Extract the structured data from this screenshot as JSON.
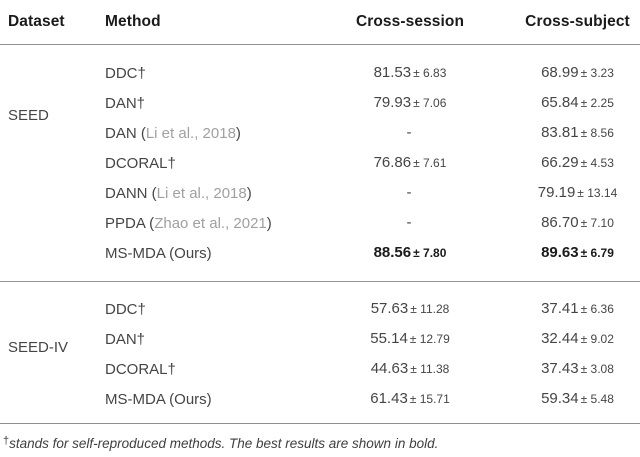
{
  "table": {
    "headers": {
      "dataset": "Dataset",
      "method": "Method",
      "cross_session": "Cross-session",
      "cross_subject": "Cross-subject"
    },
    "sections": [
      {
        "dataset": "SEED",
        "rows": [
          {
            "method_pre": "DDC†",
            "method_cite": "",
            "method_post": "",
            "session_main": "81.53",
            "session_sd": "± 6.83",
            "subject_main": "68.99",
            "subject_sd": "± 3.23"
          },
          {
            "method_pre": "DAN†",
            "method_cite": "",
            "method_post": "",
            "session_main": "79.93",
            "session_sd": "± 7.06",
            "subject_main": "65.84",
            "subject_sd": "± 2.25"
          },
          {
            "method_pre": "DAN (",
            "method_cite": "Li et al., 2018",
            "method_post": ")",
            "session_main": "-",
            "session_sd": "",
            "subject_main": "83.81",
            "subject_sd": "± 8.56"
          },
          {
            "method_pre": "DCORAL†",
            "method_cite": "",
            "method_post": "",
            "session_main": "76.86",
            "session_sd": "± 7.61",
            "subject_main": "66.29",
            "subject_sd": "± 4.53"
          },
          {
            "method_pre": "DANN (",
            "method_cite": "Li et al., 2018",
            "method_post": ")",
            "session_main": "-",
            "session_sd": "",
            "subject_main": "79.19",
            "subject_sd": "± 13.14"
          },
          {
            "method_pre": "PPDA (",
            "method_cite": "Zhao et al., 2021",
            "method_post": ")",
            "session_main": "-",
            "session_sd": "",
            "subject_main": "86.70",
            "subject_sd": "± 7.10"
          },
          {
            "method_pre": "MS-MDA (Ours)",
            "method_cite": "",
            "method_post": "",
            "session_main": "88.56",
            "session_sd": "± 7.80",
            "subject_main": "89.63",
            "subject_sd": "± 6.79"
          }
        ]
      },
      {
        "dataset": "SEED-IV",
        "rows": [
          {
            "method_pre": "DDC†",
            "method_cite": "",
            "method_post": "",
            "session_main": "57.63",
            "session_sd": "± 11.28",
            "subject_main": "37.41",
            "subject_sd": "± 6.36"
          },
          {
            "method_pre": "DAN†",
            "method_cite": "",
            "method_post": "",
            "session_main": "55.14",
            "session_sd": "± 12.79",
            "subject_main": "32.44",
            "subject_sd": "± 9.02"
          },
          {
            "method_pre": "DCORAL†",
            "method_cite": "",
            "method_post": "",
            "session_main": "44.63",
            "session_sd": "± 11.38",
            "subject_main": "37.43",
            "subject_sd": "± 3.08"
          },
          {
            "method_pre": "MS-MDA (Ours)",
            "method_cite": "",
            "method_post": "",
            "session_main": "61.43",
            "session_sd": "± 15.71",
            "subject_main": "59.34",
            "subject_sd": "± 5.48"
          }
        ]
      }
    ],
    "footnote_dagger": "†",
    "footnote_text": "stands for self-reproduced methods. The best results are shown in bold."
  }
}
